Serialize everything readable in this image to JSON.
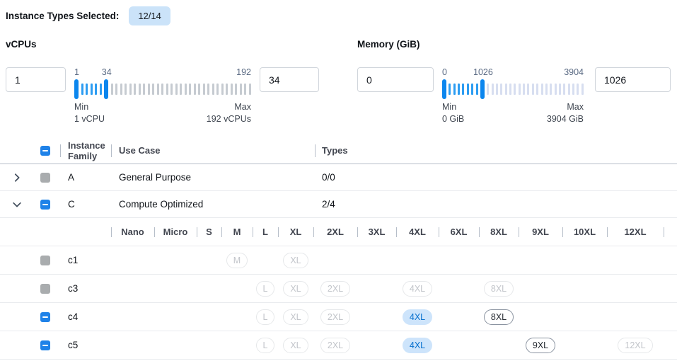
{
  "header": {
    "label": "Instance Types Selected:",
    "badge": "12/14"
  },
  "filters": {
    "vcpus": {
      "title": "vCPUs",
      "min_input": "1",
      "max_input": "34",
      "tick_labels": [
        {
          "text": "1",
          "pos": 0
        },
        {
          "text": "34",
          "pos": 15.5
        },
        {
          "text": "192",
          "pos": 100
        }
      ],
      "slider": {
        "total_ticks": 38,
        "handle_start": 0,
        "handle_end": 6
      },
      "min_label": "Min",
      "min_sub": "1 vCPU",
      "max_label": "Max",
      "max_sub": "192 vCPUs"
    },
    "memory": {
      "title": "Memory (GiB)",
      "min_input": "0",
      "max_input": "1026",
      "tick_labels": [
        {
          "text": "0",
          "pos": 0
        },
        {
          "text": "1026",
          "pos": 22
        },
        {
          "text": "3904",
          "pos": 100
        }
      ],
      "slider": {
        "total_ticks": 31,
        "handle_start": 0,
        "handle_end": 8
      },
      "min_label": "Min",
      "min_sub": "0 GiB",
      "max_label": "Max",
      "max_sub": "3904 GiB"
    }
  },
  "table": {
    "columns": {
      "family": "Instance Family",
      "use_case": "Use Case",
      "types": "Types"
    },
    "size_columns": [
      "Nano",
      "Micro",
      "S",
      "M",
      "L",
      "XL",
      "2XL",
      "3XL",
      "4XL",
      "6XL",
      "8XL",
      "9XL",
      "10XL",
      "12XL"
    ],
    "family_rows": [
      {
        "id": "A",
        "expanded": false,
        "checkbox": "gray",
        "family": "A",
        "use_case": "General Purpose",
        "types": "0/0"
      },
      {
        "id": "C",
        "expanded": true,
        "checkbox": "blue",
        "family": "C",
        "use_case": "Compute Optimized",
        "types": "2/4"
      }
    ],
    "instance_rows": [
      {
        "name": "c1",
        "checkbox": "gray",
        "sizes": {
          "M": "disabled",
          "XL": "disabled"
        }
      },
      {
        "name": "c3",
        "checkbox": "gray",
        "sizes": {
          "L": "disabled",
          "XL": "disabled",
          "2XL": "disabled",
          "4XL": "disabled",
          "8XL": "disabled"
        }
      },
      {
        "name": "c4",
        "checkbox": "blue",
        "sizes": {
          "L": "disabled",
          "XL": "disabled",
          "2XL": "disabled",
          "4XL": "selected",
          "8XL": "enabled"
        }
      },
      {
        "name": "c5",
        "checkbox": "blue",
        "sizes": {
          "L": "disabled",
          "XL": "disabled",
          "2XL": "disabled",
          "4XL": "selected",
          "9XL": "enabled",
          "12XL": "disabled"
        }
      }
    ]
  },
  "colors": {
    "accent": "#1f82e8",
    "slider_handle": "#0b86ee",
    "tick_active": "#2d9df2",
    "selected_pill_bg": "#cde4fb",
    "selected_pill_text": "#0871cf",
    "badge_bg": "#cbe3f9"
  }
}
